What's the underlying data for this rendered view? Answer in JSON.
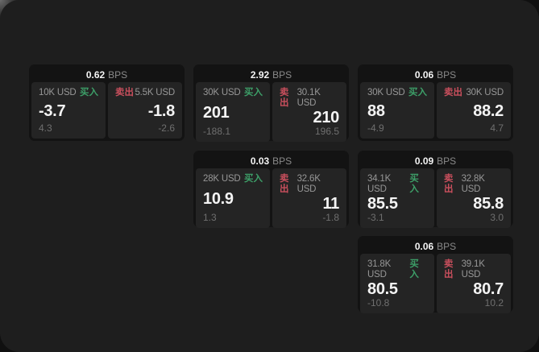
{
  "labels": {
    "bps_suffix": "BPS",
    "buy": "买入",
    "sell": "卖出"
  },
  "colors": {
    "buy_green": "#3d9f68",
    "sell_red": "#c94f5d",
    "window_bg": "#1e1e1e",
    "card_bg": "#131313",
    "panel_bg": "#242424"
  },
  "cards": [
    {
      "grid": {
        "col": 1,
        "row": 1
      },
      "bps": "0.62",
      "buy": {
        "amount": "10K USD",
        "price": "-3.7",
        "sub": "4.3"
      },
      "sell": {
        "amount": "5.5K USD",
        "price": "-1.8",
        "sub": "-2.6"
      }
    },
    {
      "grid": {
        "col": 2,
        "row": 1
      },
      "bps": "2.92",
      "buy": {
        "amount": "30K USD",
        "price": "201",
        "sub": "-188.1"
      },
      "sell": {
        "amount": "30.1K USD",
        "price": "210",
        "sub": "196.5"
      }
    },
    {
      "grid": {
        "col": 3,
        "row": 1
      },
      "bps": "0.06",
      "buy": {
        "amount": "30K USD",
        "price": "88",
        "sub": "-4.9"
      },
      "sell": {
        "amount": "30K USD",
        "price": "88.2",
        "sub": "4.7"
      }
    },
    {
      "grid": {
        "col": 2,
        "row": 2
      },
      "bps": "0.03",
      "buy": {
        "amount": "28K USD",
        "price": "10.9",
        "sub": "1.3"
      },
      "sell": {
        "amount": "32.6K USD",
        "price": "11",
        "sub": "-1.8"
      }
    },
    {
      "grid": {
        "col": 3,
        "row": 2
      },
      "bps": "0.09",
      "buy": {
        "amount": "34.1K USD",
        "price": "85.5",
        "sub": "-3.1"
      },
      "sell": {
        "amount": "32.8K USD",
        "price": "85.8",
        "sub": "3.0"
      }
    },
    {
      "grid": {
        "col": 3,
        "row": 3
      },
      "bps": "0.06",
      "buy": {
        "amount": "31.8K USD",
        "price": "80.5",
        "sub": "-10.8"
      },
      "sell": {
        "amount": "39.1K USD",
        "price": "80.7",
        "sub": "10.2"
      }
    }
  ]
}
